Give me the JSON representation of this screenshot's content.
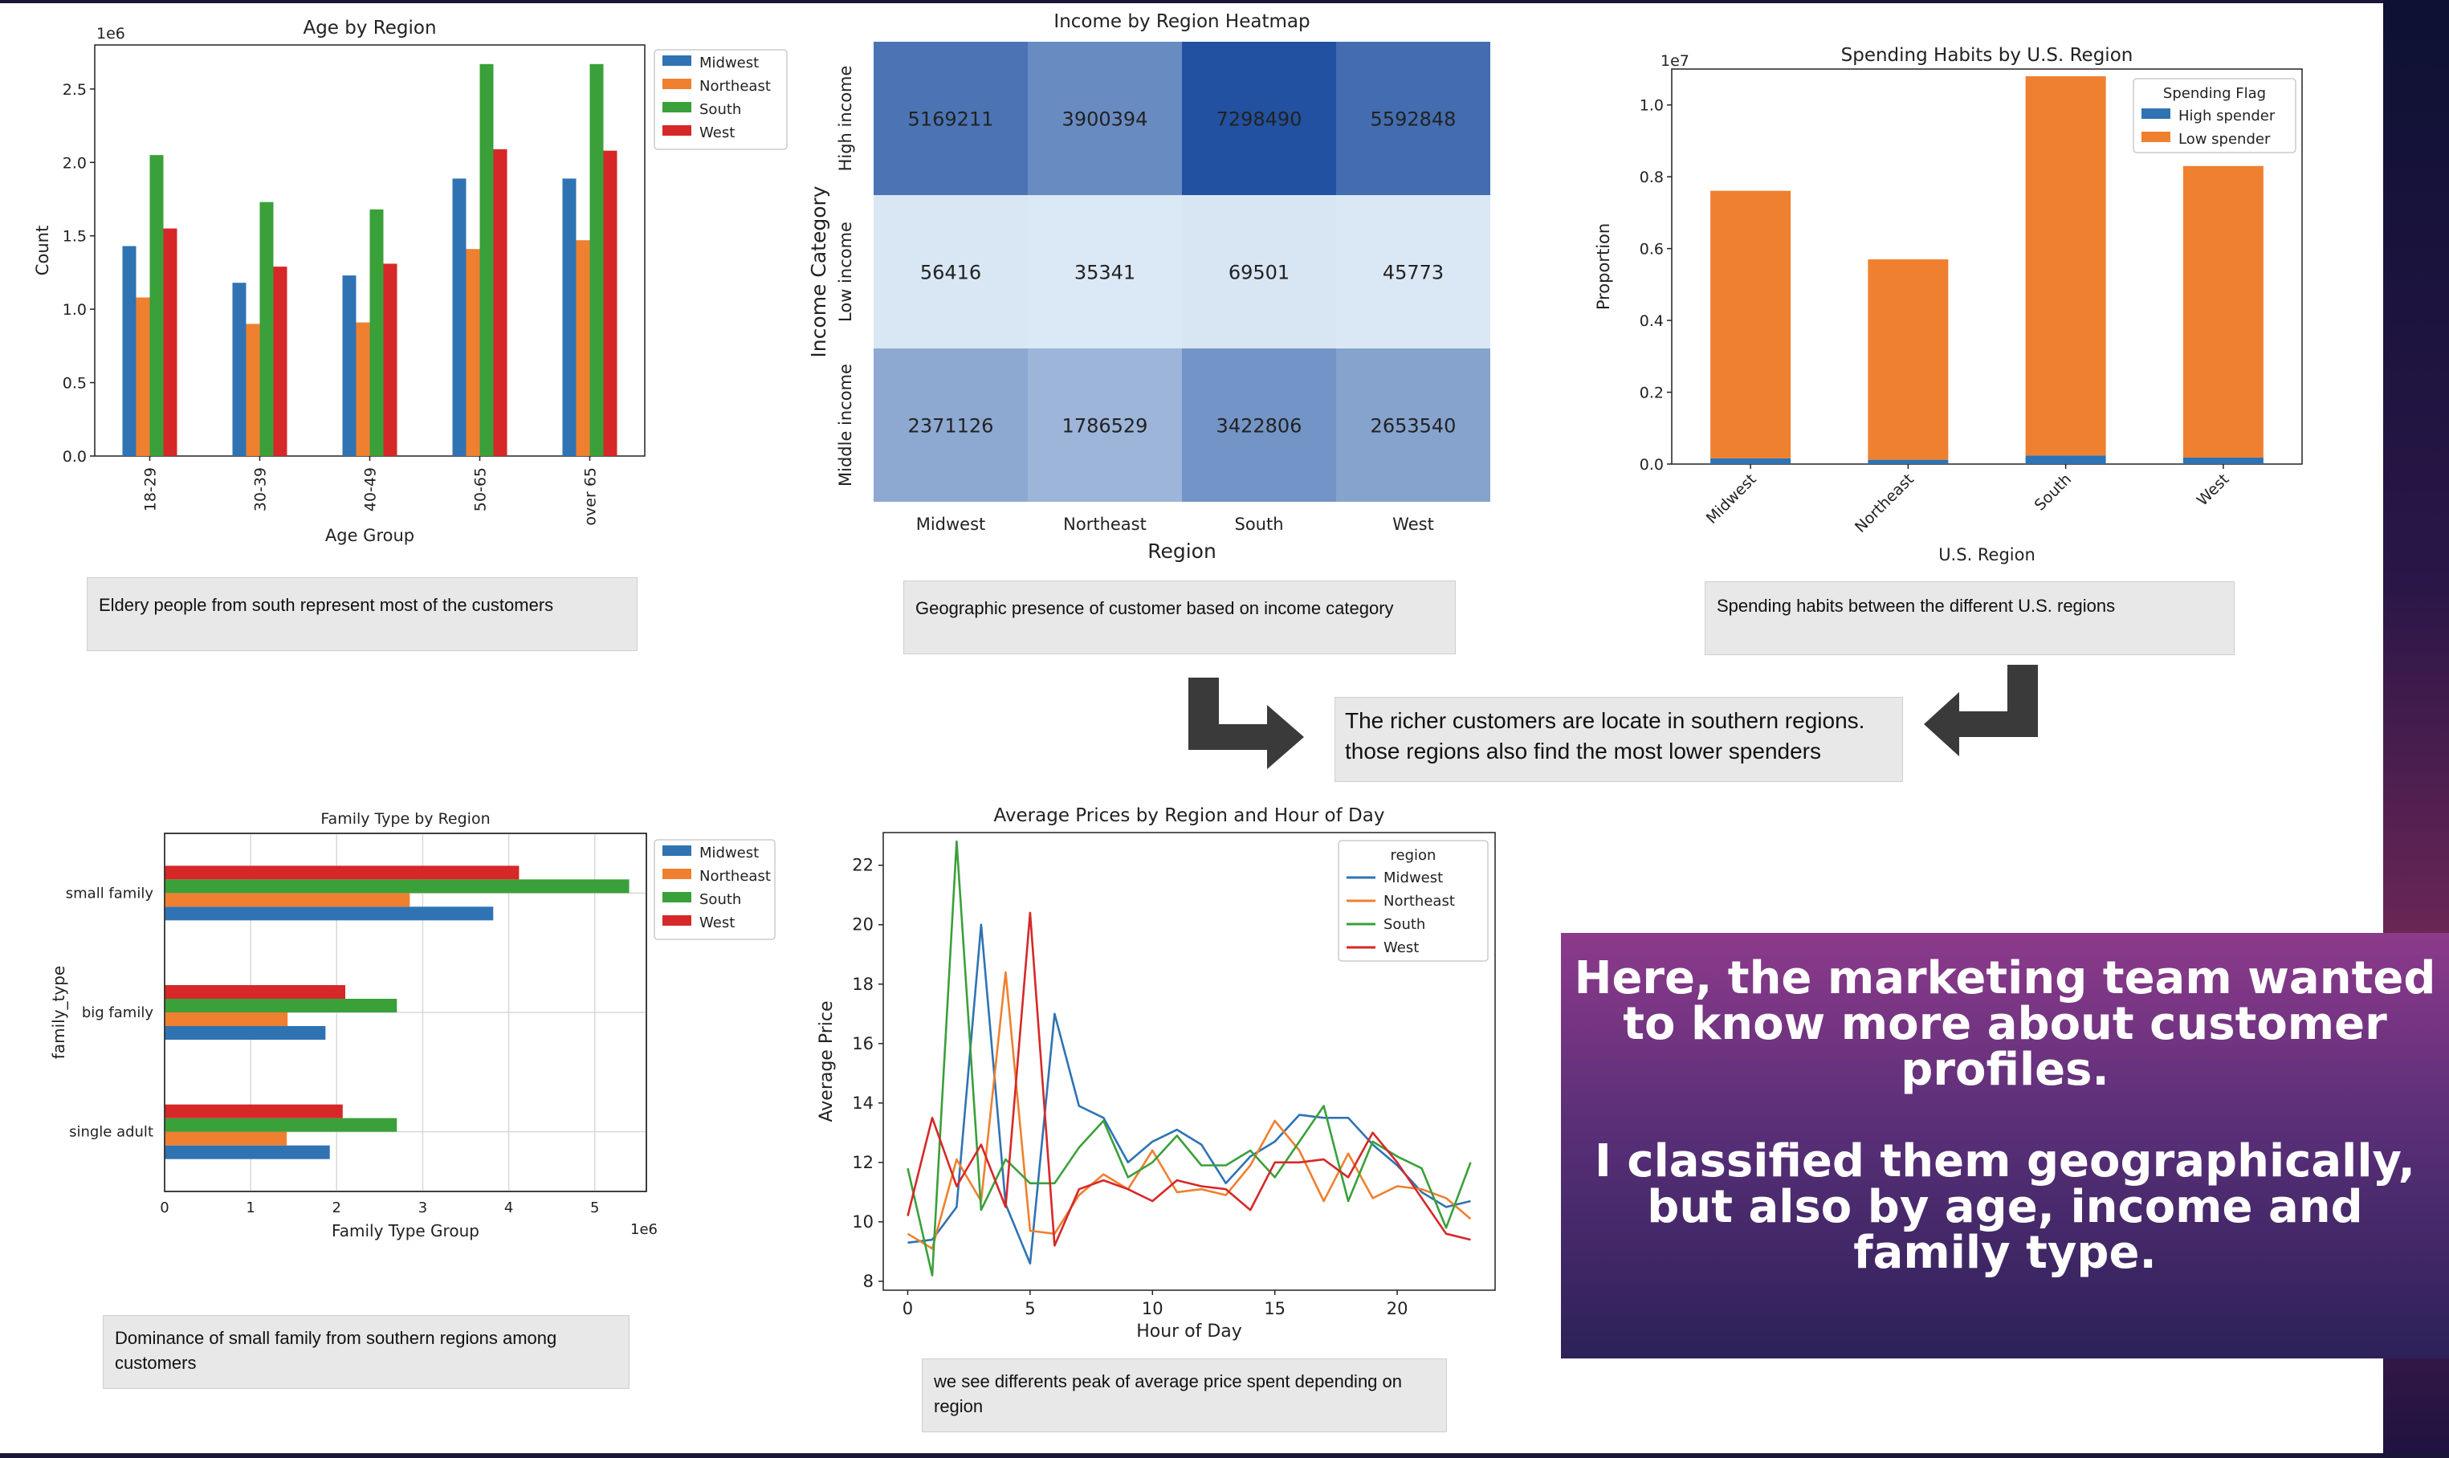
{
  "colors": {
    "Midwest": "#2f73b3",
    "Northeast": "#ef8030",
    "South": "#3aa03a",
    "West": "#d62828",
    "high_spender": "#2f73b3",
    "low_spender": "#ef8030"
  },
  "captions": {
    "age": "Eldery people from south represent most of the customers",
    "heatmap": "Geographic presence of customer based on income category",
    "spending": "Spending habits between the different U.S. regions",
    "conclusion_line1": "The richer customers are locate in southern regions.",
    "conclusion_line2": "those regions also find the most lower spenders",
    "family": "Dominance of small family from southern regions among customers",
    "prices": "we see differents peak of average price spent depending on region"
  },
  "promo": {
    "text": "Here, the marketing team wanted to know more about customer profiles.\n\nI classified them geographically, but also by age, income and family type."
  },
  "chart_data": [
    {
      "id": "age",
      "type": "bar",
      "title": "Age by Region",
      "xlabel": "Age Group",
      "ylabel": "Count",
      "y_exponent": "1e6",
      "categories": [
        "18-29",
        "30-39",
        "40-49",
        "50-65",
        "over 65"
      ],
      "series": [
        {
          "name": "Midwest",
          "values": [
            1.43,
            1.18,
            1.23,
            1.89,
            1.89
          ]
        },
        {
          "name": "Northeast",
          "values": [
            1.08,
            0.9,
            0.91,
            1.41,
            1.47
          ]
        },
        {
          "name": "South",
          "values": [
            2.05,
            1.73,
            1.68,
            2.67,
            2.67
          ]
        },
        {
          "name": "West",
          "values": [
            1.55,
            1.29,
            1.31,
            2.09,
            2.08
          ]
        }
      ],
      "ylim": [
        0,
        2.8
      ],
      "yticks": [
        "0.0",
        "0.5",
        "1.0",
        "1.5",
        "2.0",
        "2.5"
      ],
      "legend": "top-right"
    },
    {
      "id": "heatmap",
      "type": "heatmap",
      "title": "Income by Region Heatmap",
      "xlabel": "Region",
      "ylabel": "Income Category",
      "columns": [
        "Midwest",
        "Northeast",
        "South",
        "West"
      ],
      "rows": [
        "High income",
        "Low income",
        "Middle income"
      ],
      "values": [
        [
          5169211,
          3900394,
          7298490,
          5592848
        ],
        [
          56416,
          35341,
          69501,
          45773
        ],
        [
          2371126,
          1786529,
          3422806,
          2653540
        ]
      ]
    },
    {
      "id": "spending",
      "type": "bar",
      "stacked": true,
      "title": "Spending Habits by U.S. Region",
      "xlabel": "U.S. Region",
      "ylabel": "Proportion",
      "y_exponent": "1e7",
      "legend_title": "Spending Flag",
      "categories": [
        "Midwest",
        "Northeast",
        "South",
        "West"
      ],
      "series": [
        {
          "name": "High spender",
          "values": [
            0.016,
            0.012,
            0.024,
            0.018
          ]
        },
        {
          "name": "Low spender",
          "values": [
            0.745,
            0.558,
            1.056,
            0.812
          ]
        }
      ],
      "ylim": [
        0,
        1.1
      ],
      "yticks": [
        "0.0",
        "0.2",
        "0.4",
        "0.6",
        "0.8",
        "1.0"
      ],
      "legend": "top-right"
    },
    {
      "id": "family",
      "type": "bar",
      "orientation": "horizontal",
      "title": "Family Type by Region",
      "xlabel": "Family Type Group",
      "ylabel": "family_type",
      "x_exponent": "1e6",
      "categories": [
        "single adult",
        "big family",
        "small family"
      ],
      "series": [
        {
          "name": "Midwest",
          "values": [
            1.92,
            1.87,
            3.82
          ]
        },
        {
          "name": "Northeast",
          "values": [
            1.42,
            1.43,
            2.85
          ]
        },
        {
          "name": "South",
          "values": [
            2.7,
            2.7,
            5.4
          ]
        },
        {
          "name": "West",
          "values": [
            2.07,
            2.1,
            4.12
          ]
        }
      ],
      "xlim": [
        0,
        5.6
      ],
      "xticks": [
        "0",
        "1",
        "2",
        "3",
        "4",
        "5"
      ],
      "legend": "top-right"
    },
    {
      "id": "prices",
      "type": "line",
      "title": "Average Prices by Region and Hour of Day",
      "xlabel": "Hour of Day",
      "ylabel": "Average Price",
      "legend_title": "region",
      "x": [
        0,
        1,
        2,
        3,
        4,
        5,
        6,
        7,
        8,
        9,
        10,
        11,
        12,
        13,
        14,
        15,
        16,
        17,
        18,
        19,
        20,
        21,
        22,
        23
      ],
      "series": [
        {
          "name": "Midwest",
          "values": [
            9.3,
            9.4,
            10.5,
            20.0,
            10.6,
            8.6,
            17.0,
            13.9,
            13.5,
            12.0,
            12.7,
            13.1,
            12.6,
            11.3,
            12.2,
            12.7,
            13.6,
            13.5,
            13.5,
            12.6,
            11.9,
            11.0,
            10.5,
            10.7
          ]
        },
        {
          "name": "Northeast",
          "values": [
            9.6,
            9.1,
            12.1,
            10.7,
            18.4,
            9.7,
            9.6,
            10.9,
            11.6,
            11.1,
            12.4,
            11.0,
            11.1,
            10.9,
            11.9,
            13.4,
            12.4,
            10.7,
            12.3,
            10.8,
            11.2,
            11.1,
            10.8,
            10.1
          ]
        },
        {
          "name": "South",
          "values": [
            11.8,
            8.2,
            22.8,
            10.4,
            12.1,
            11.3,
            11.3,
            12.5,
            13.4,
            11.5,
            12.0,
            12.9,
            11.9,
            11.9,
            12.4,
            11.5,
            12.7,
            13.9,
            10.7,
            12.7,
            12.2,
            11.8,
            9.8,
            12.0
          ]
        },
        {
          "name": "West",
          "values": [
            10.2,
            13.5,
            11.2,
            12.6,
            10.5,
            20.4,
            9.2,
            11.1,
            11.4,
            11.1,
            10.7,
            11.4,
            11.2,
            11.1,
            10.4,
            12.0,
            12.0,
            12.1,
            11.5,
            13.0,
            12.0,
            10.8,
            9.6,
            9.4
          ]
        }
      ],
      "xlim": [
        -1,
        24
      ],
      "ylim": [
        7.7,
        23.1
      ],
      "xticks": [
        "0",
        "5",
        "10",
        "15",
        "20"
      ],
      "yticks": [
        "8",
        "10",
        "12",
        "14",
        "16",
        "18",
        "20",
        "22"
      ],
      "legend": "top-right"
    }
  ]
}
